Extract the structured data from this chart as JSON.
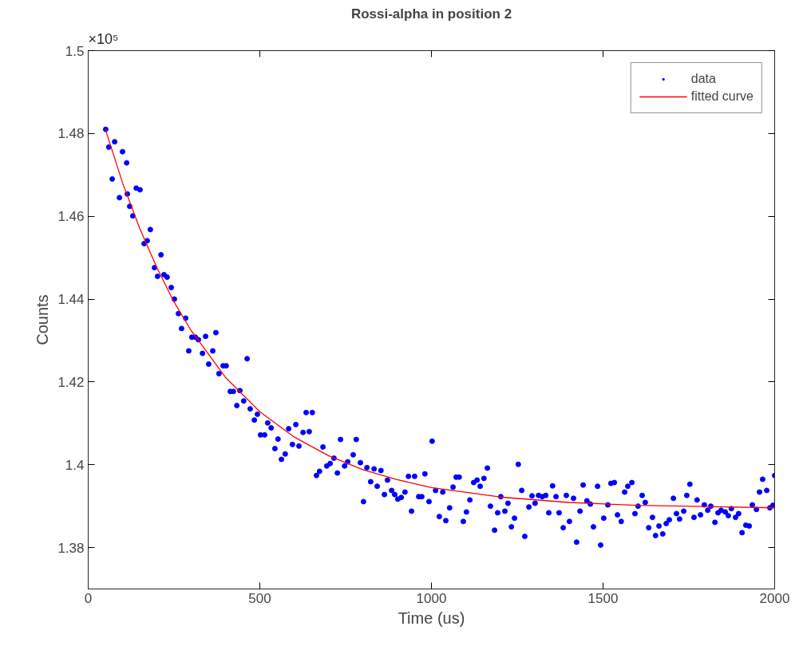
{
  "chart_data": {
    "type": "scatter",
    "title": "Rossi-alpha in position 2",
    "xlabel": "Time (us)",
    "ylabel": "Counts",
    "annotations": [
      "×10⁵"
    ],
    "xlim": [
      0,
      2000
    ],
    "xticks": [
      0,
      500,
      1000,
      1500,
      2000
    ],
    "ylim": [
      1.37,
      1.5
    ],
    "yticks": [
      1.38,
      1.4,
      1.42,
      1.44,
      1.46,
      1.48,
      1.5
    ],
    "grid": false,
    "legend": "top right",
    "series": [
      {
        "name": "data",
        "marker": "circle",
        "color": "#0000ff",
        "x": [
          51,
          60,
          70,
          77,
          91,
          100,
          112,
          114,
          121,
          130,
          140,
          151,
          163,
          172,
          181,
          193,
          202,
          212,
          221,
          230,
          242,
          251,
          263,
          272,
          284,
          293,
          302,
          312,
          321,
          333,
          342,
          351,
          363,
          372,
          381,
          393,
          402,
          414,
          423,
          433,
          442,
          453,
          463,
          472,
          484,
          493,
          502,
          514,
          523,
          533,
          544,
          553,
          563,
          574,
          584,
          595,
          605,
          614,
          626,
          635,
          644,
          653,
          665,
          674,
          684,
          695,
          705,
          716,
          726,
          735,
          747,
          756,
          772,
          781,
          793,
          802,
          812,
          823,
          833,
          842,
          853,
          863,
          872,
          884,
          893,
          902,
          912,
          923,
          933,
          942,
          951,
          963,
          972,
          981,
          993,
          1002,
          1012,
          1023,
          1033,
          1042,
          1053,
          1063,
          1072,
          1081,
          1093,
          1102,
          1112,
          1123,
          1133,
          1142,
          1153,
          1163,
          1172,
          1184,
          1193,
          1202,
          1214,
          1223,
          1233,
          1242,
          1253,
          1263,
          1272,
          1284,
          1293,
          1302,
          1312,
          1323,
          1333,
          1342,
          1353,
          1363,
          1372,
          1384,
          1393,
          1402,
          1414,
          1423,
          1433,
          1442,
          1453,
          1463,
          1472,
          1484,
          1493,
          1502,
          1514,
          1523,
          1533,
          1542,
          1553,
          1563,
          1572,
          1584,
          1593,
          1602,
          1614,
          1623,
          1633,
          1644,
          1653,
          1663,
          1674,
          1684,
          1693,
          1705,
          1714,
          1723,
          1735,
          1744,
          1753,
          1765,
          1774,
          1784,
          1795,
          1805,
          1814,
          1826,
          1835,
          1844,
          1856,
          1865,
          1874,
          1886,
          1895,
          1905,
          1916,
          1926,
          1935,
          1947,
          1956,
          1965,
          1977,
          1986,
          1995,
          2000
        ],
        "values": [
          1.481,
          1.4767,
          1.469,
          1.478,
          1.4645,
          1.4756,
          1.4729,
          1.4654,
          1.4624,
          1.4601,
          1.4668,
          1.4664,
          1.4534,
          1.4541,
          1.4568,
          1.4476,
          1.4455,
          1.4507,
          1.4459,
          1.4453,
          1.4428,
          1.44,
          1.4365,
          1.4329,
          1.4354,
          1.4275,
          1.4308,
          1.4308,
          1.4302,
          1.4269,
          1.431,
          1.4243,
          1.4275,
          1.4319,
          1.422,
          1.4239,
          1.4239,
          1.4177,
          1.4177,
          1.4143,
          1.4179,
          1.4154,
          1.4256,
          1.4135,
          1.4108,
          1.4122,
          1.4072,
          1.4072,
          1.4101,
          1.4089,
          1.4039,
          1.4062,
          1.4013,
          1.4026,
          1.4087,
          1.4049,
          1.4097,
          1.4045,
          1.4078,
          1.4126,
          1.408,
          1.4126,
          1.3974,
          1.3984,
          1.4043,
          1.3997,
          1.4003,
          1.4016,
          1.398,
          1.4061,
          1.3997,
          1.4007,
          1.4024,
          1.4061,
          1.4005,
          1.3911,
          1.3993,
          1.3959,
          1.399,
          1.3948,
          1.3986,
          1.3928,
          1.3963,
          1.3938,
          1.3928,
          1.3917,
          1.3921,
          1.3934,
          1.3972,
          1.3888,
          1.3972,
          1.3923,
          1.3923,
          1.3978,
          1.3911,
          1.4057,
          1.3938,
          1.3875,
          1.3934,
          1.3865,
          1.3896,
          1.3946,
          1.397,
          1.397,
          1.3863,
          1.3886,
          1.3915,
          1.3957,
          1.3963,
          1.3948,
          1.3967,
          1.3992,
          1.39,
          1.3842,
          1.3884,
          1.3923,
          1.3888,
          1.3907,
          1.385,
          1.3871,
          1.4001,
          1.3938,
          1.3827,
          1.3898,
          1.3925,
          1.3907,
          1.3926,
          1.3923,
          1.3926,
          1.3884,
          1.3949,
          1.3923,
          1.3884,
          1.3848,
          1.3926,
          1.3863,
          1.3919,
          1.3813,
          1.3888,
          1.3951,
          1.3913,
          1.3905,
          1.385,
          1.3948,
          1.3806,
          1.3871,
          1.3903,
          1.3955,
          1.3957,
          1.3879,
          1.3863,
          1.3934,
          1.3948,
          1.3957,
          1.3882,
          1.39,
          1.3926,
          1.3909,
          1.3848,
          1.3873,
          1.3829,
          1.3852,
          1.3833,
          1.3858,
          1.3867,
          1.3919,
          1.3882,
          1.3869,
          1.3888,
          1.3926,
          1.3953,
          1.3873,
          1.3915,
          1.3879,
          1.3903,
          1.389,
          1.39,
          1.3861,
          1.3884,
          1.389,
          1.3886,
          1.3877,
          1.3894,
          1.3873,
          1.3882,
          1.3836,
          1.3854,
          1.3852,
          1.3903,
          1.3892,
          1.3934,
          1.3965,
          1.3938,
          1.3896,
          1.3902,
          1.3974
        ]
      },
      {
        "name": "fitted curve",
        "type": "line",
        "line_style": "solid",
        "color": "#ff0000",
        "x": [
          50,
          100,
          150,
          200,
          250,
          300,
          400,
          500,
          600,
          700,
          800,
          900,
          1000,
          1200,
          1400,
          1600,
          1800,
          2000
        ],
        "values": [
          1.481,
          1.4681,
          1.4571,
          1.4476,
          1.4393,
          1.4324,
          1.4211,
          1.4128,
          1.4067,
          1.4022,
          1.3988,
          1.3964,
          1.3945,
          1.3922,
          1.3909,
          1.3902,
          1.3899,
          1.3896
        ]
      }
    ]
  }
}
